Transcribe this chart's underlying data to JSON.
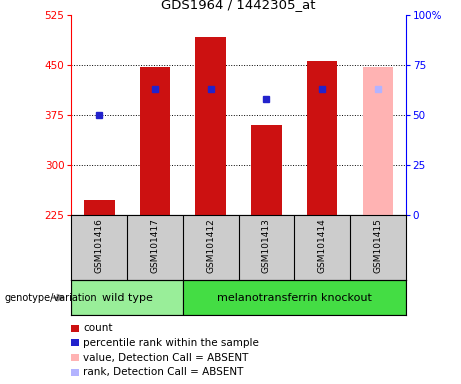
{
  "title": "GDS1964 / 1442305_at",
  "samples": [
    "GSM101416",
    "GSM101417",
    "GSM101412",
    "GSM101413",
    "GSM101414",
    "GSM101415"
  ],
  "counts": [
    248,
    447,
    493,
    360,
    456,
    null
  ],
  "percentile_ranks": [
    50,
    63,
    63,
    58,
    63,
    null
  ],
  "absent_value": 447,
  "absent_rank": 63,
  "absent_sample_idx": 5,
  "ylim_left": [
    225,
    525
  ],
  "ylim_right": [
    0,
    100
  ],
  "yticks_left": [
    225,
    300,
    375,
    450,
    525
  ],
  "yticks_right": [
    0,
    25,
    50,
    75,
    100
  ],
  "ytick_right_labels": [
    "0",
    "25",
    "50",
    "75",
    "100%"
  ],
  "bar_color": "#cc1111",
  "dot_color": "#2222cc",
  "absent_bar_color": "#ffb3b3",
  "absent_dot_color": "#b3b3ff",
  "wild_type_samples": [
    0,
    1
  ],
  "knockout_samples": [
    2,
    3,
    4,
    5
  ],
  "wild_type_label": "wild type",
  "knockout_label": "melanotransferrin knockout",
  "genotype_label": "genotype/variation",
  "legend_count": "count",
  "legend_rank": "percentile rank within the sample",
  "legend_absent_value": "value, Detection Call = ABSENT",
  "legend_absent_rank": "rank, Detection Call = ABSENT",
  "bar_bottom": 225,
  "grid_yticks": [
    300,
    375,
    450
  ],
  "label_bg": "#cccccc",
  "wt_color": "#99ee99",
  "ko_color": "#44dd44"
}
